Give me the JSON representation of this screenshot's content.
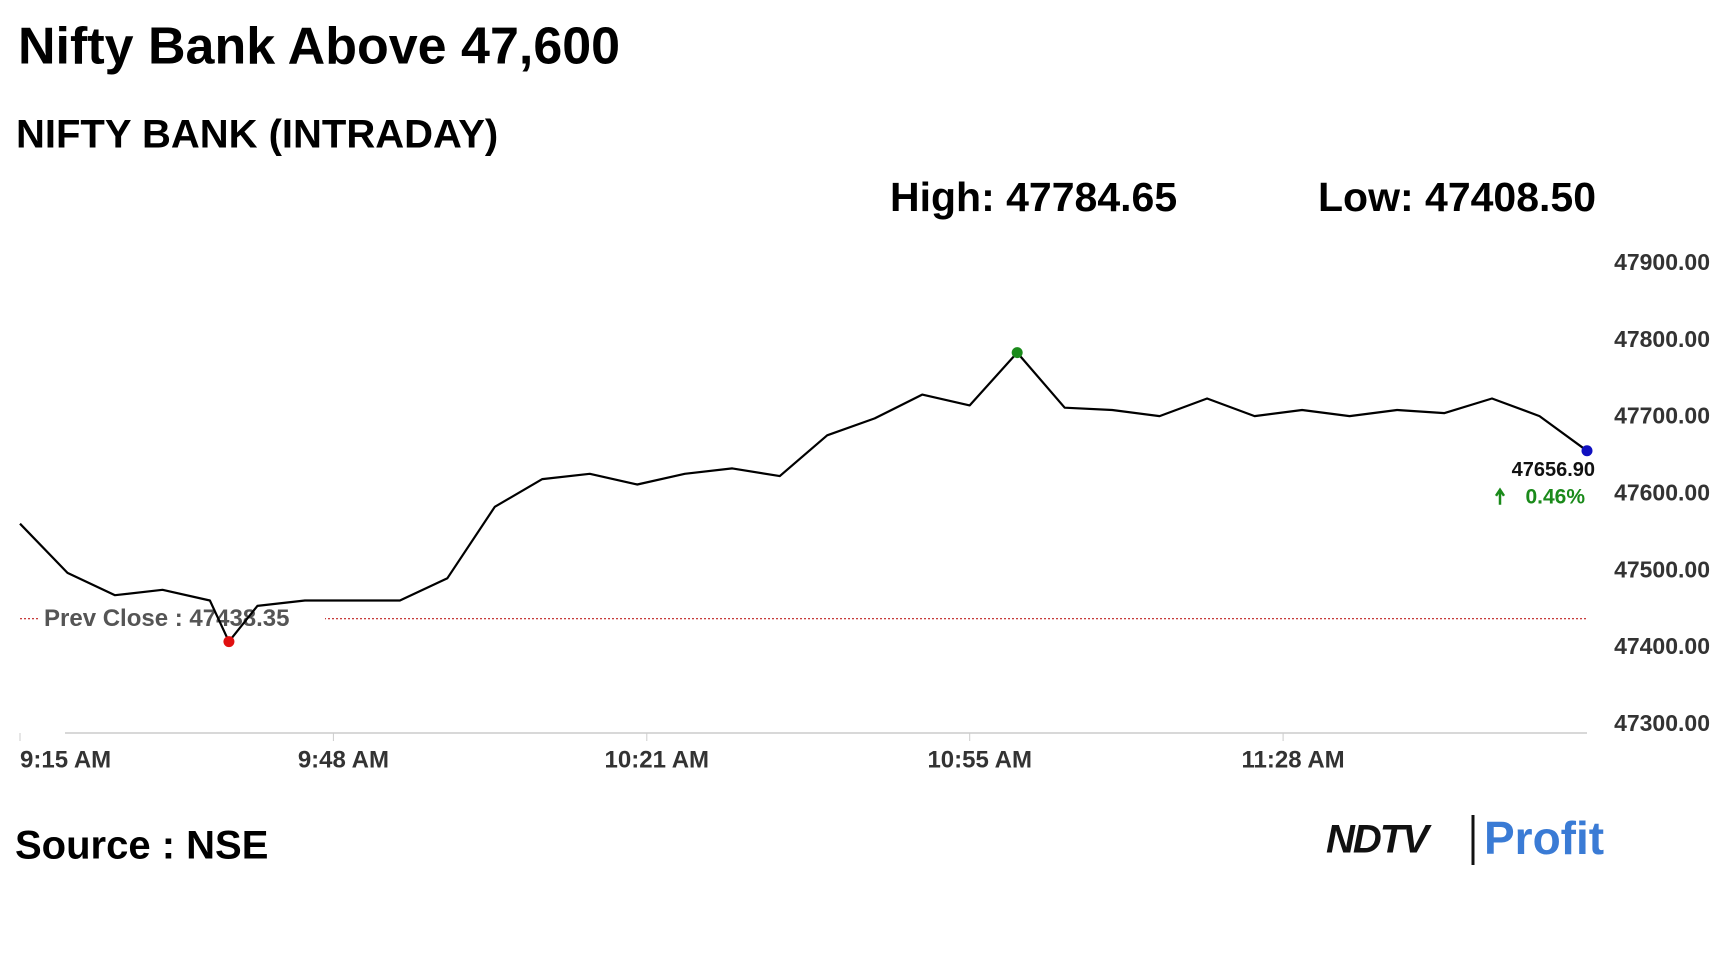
{
  "chart_data": {
    "type": "line",
    "title": "Nifty Bank Above 47,600",
    "subtitle": "NIFTY BANK (INTRADAY)",
    "high_label": "High: 47784.65",
    "low_label": "Low: 47408.50",
    "x": [
      "9:15 AM",
      "9:20 AM",
      "9:25 AM",
      "9:30 AM",
      "9:35 AM",
      "9:37 AM",
      "9:40 AM",
      "9:45 AM",
      "9:50 AM",
      "9:55 AM",
      "10:00 AM",
      "10:05 AM",
      "10:10 AM",
      "10:15 AM",
      "10:20 AM",
      "10:25 AM",
      "10:30 AM",
      "10:35 AM",
      "10:40 AM",
      "10:45 AM",
      "10:50 AM",
      "10:55 AM",
      "11:00 AM",
      "11:05 AM",
      "11:10 AM",
      "11:15 AM",
      "11:20 AM",
      "11:25 AM",
      "11:30 AM",
      "11:35 AM",
      "11:40 AM",
      "11:45 AM",
      "11:50 AM",
      "11:55 AM",
      "12:00 PM"
    ],
    "series": [
      {
        "name": "NIFTY BANK",
        "color": "#000000",
        "values": [
          47562,
          47498,
          47469,
          47476,
          47462,
          47408.5,
          47455,
          47462,
          47462,
          47462,
          47491,
          47584,
          47620,
          47627,
          47613,
          47627,
          47634,
          47624,
          47677,
          47699,
          47730,
          47716,
          47784.65,
          47713,
          47710,
          47702,
          47725,
          47702,
          47710,
          47702,
          47710,
          47706,
          47725,
          47702,
          47656.9
        ]
      }
    ],
    "high_color": "#1a8a1a",
    "low_color": "#e01010",
    "last_color": "#1010c0",
    "last_value_label": "47656.90",
    "change_label": "0.46%",
    "change_color": "#1a8a1a",
    "prev_close": 47438.35,
    "prev_close_label": "Prev Close : 47438.35",
    "prev_close_color": "#c02020",
    "xlim": [
      "9:15 AM",
      "12:00 PM"
    ],
    "xticks": [
      "9:15 AM",
      "9:48 AM",
      "10:21 AM",
      "10:55 AM",
      "11:28 AM"
    ],
    "ylim": [
      47300,
      47900
    ],
    "yticks": [
      {
        "value": 47300,
        "label": "47300.00"
      },
      {
        "value": 47400,
        "label": "47400.00"
      },
      {
        "value": 47500,
        "label": "47500.00"
      },
      {
        "value": 47600,
        "label": "47600.00"
      },
      {
        "value": 47700,
        "label": "47700.00"
      },
      {
        "value": 47800,
        "label": "47800.00"
      },
      {
        "value": 47900,
        "label": "47900.00"
      }
    ],
    "source": "Source : NSE",
    "logo_left": "NDTV",
    "logo_right": "Profit"
  }
}
